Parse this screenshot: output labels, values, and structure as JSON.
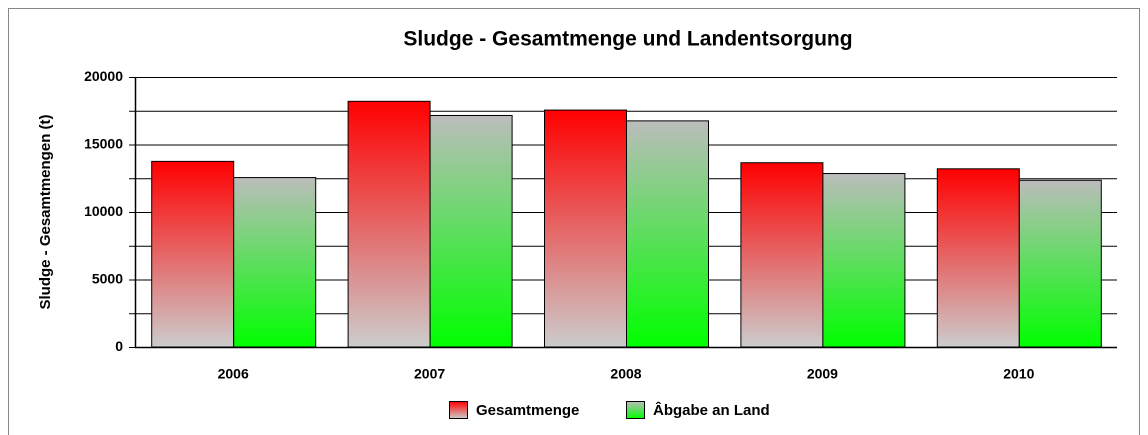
{
  "chart_data": {
    "type": "bar",
    "title": "Sludge - Gesamtmenge und Landentsorgung",
    "y_label": "Sludge - Gesamtmengen (t)",
    "categories": [
      "2006",
      "2007",
      "2008",
      "2009",
      "2010"
    ],
    "series": [
      {
        "name": "Gesamtmenge",
        "color": "#ff0000",
        "values": [
          13750,
          18200,
          17550,
          13650,
          13200
        ]
      },
      {
        "name": "Âbgabe an Land",
        "color": "#00ff00",
        "values": [
          12550,
          17150,
          16750,
          12850,
          12350
        ]
      }
    ],
    "ylim": [
      0,
      20000
    ],
    "yticks": [
      0,
      5000,
      10000,
      15000,
      20000
    ],
    "minor_yticks": [
      2500,
      7500,
      12500,
      17500
    ],
    "grid": true,
    "legend": "bottom"
  }
}
